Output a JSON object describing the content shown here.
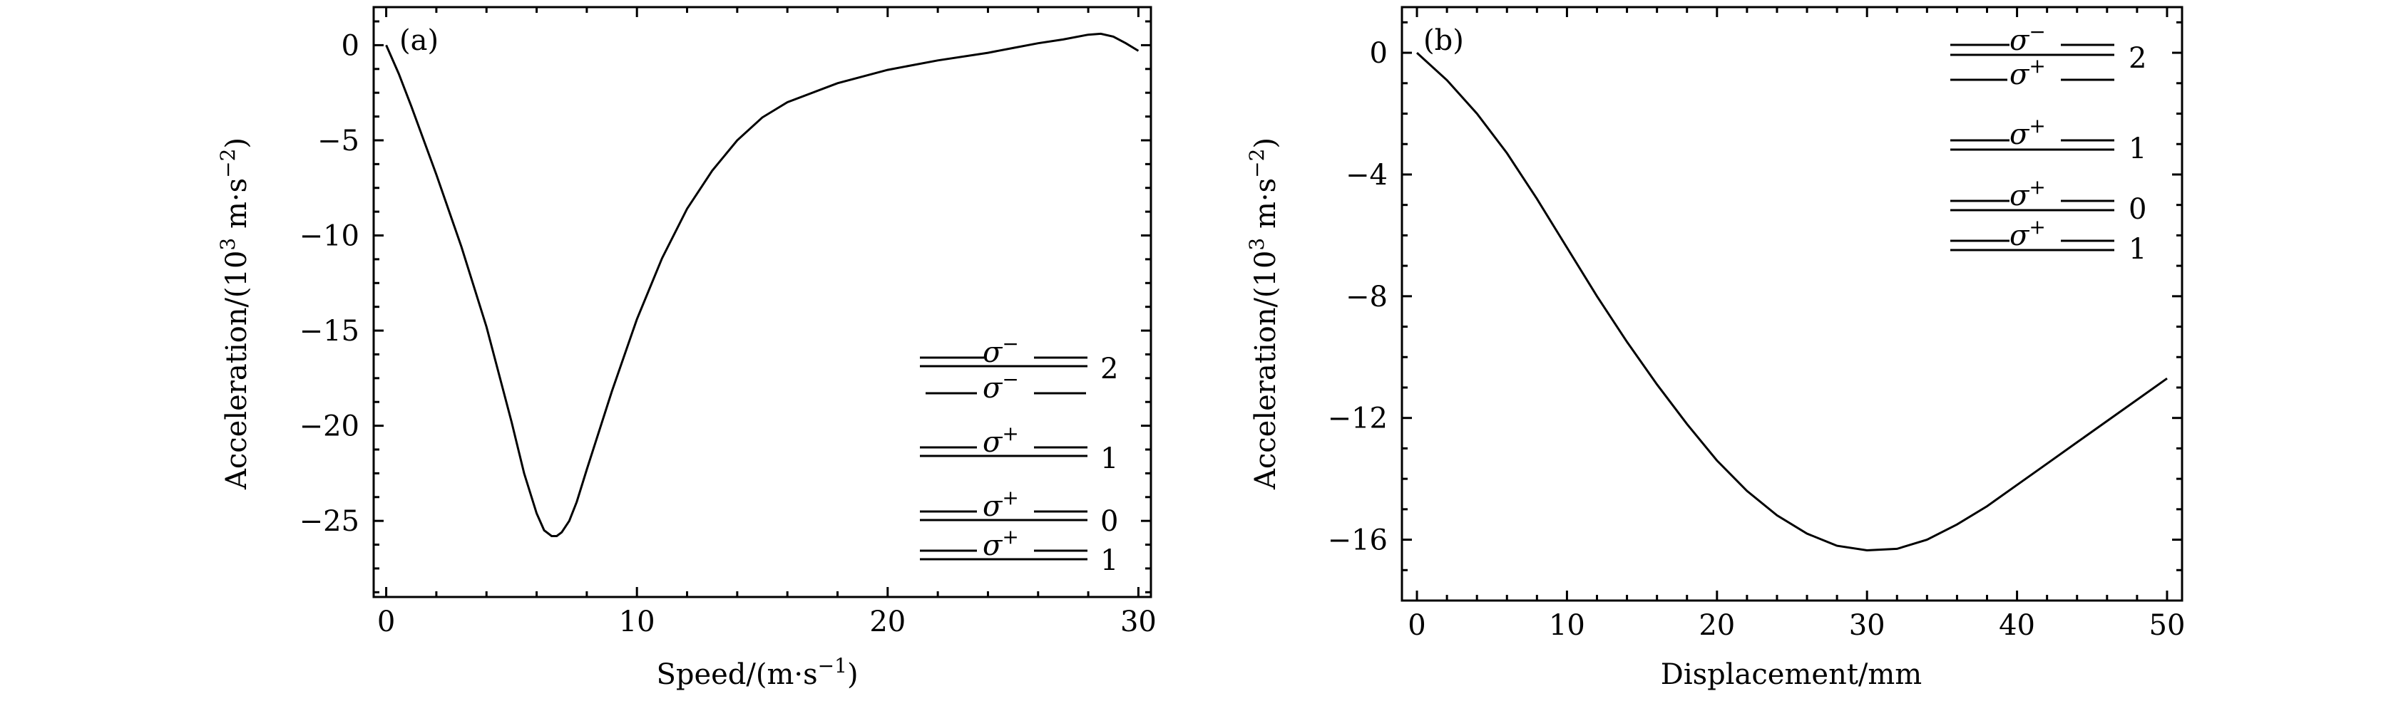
{
  "chart_data": [
    {
      "type": "line",
      "panel_label": "(a)",
      "xlabel": "Speed/(m·s⁻¹)",
      "ylabel": "Acceleration/(10³ m·s⁻²)",
      "xlim": [
        -0.5,
        30.5
      ],
      "ylim": [
        -29,
        2
      ],
      "xticks": [
        0,
        10,
        20,
        30
      ],
      "xtick_labels": [
        "0",
        "10",
        "20",
        "30"
      ],
      "yticks": [
        0,
        -5,
        -10,
        -15,
        -20,
        -25
      ],
      "ytick_labels": [
        "0",
        "−5",
        "−10",
        "−15",
        "−20",
        "−25"
      ],
      "series": [
        {
          "x": [
            0,
            0.5,
            1,
            2,
            3,
            4,
            5,
            5.5,
            6,
            6.3,
            6.6,
            6.8,
            7.0,
            7.3,
            7.6,
            8,
            9,
            10,
            11,
            12,
            13,
            14,
            15,
            16,
            18,
            20,
            22,
            24,
            25,
            26,
            27,
            28,
            28.5,
            29,
            29.5,
            30
          ],
          "y": [
            0,
            -1.5,
            -3.2,
            -6.8,
            -10.6,
            -14.8,
            -19.8,
            -22.5,
            -24.6,
            -25.5,
            -25.8,
            -25.8,
            -25.6,
            -25,
            -24,
            -22.3,
            -18.2,
            -14.4,
            -11.2,
            -8.6,
            -6.6,
            -5,
            -3.8,
            -3,
            -2,
            -1.3,
            -0.8,
            -0.4,
            -0.15,
            0.1,
            0.3,
            0.55,
            0.6,
            0.45,
            0.1,
            -0.3
          ]
        }
      ],
      "legend": [
        {
          "symbols": [
            "σ⁻",
            "σ⁻"
          ],
          "level": "2"
        },
        {
          "symbols": [
            "σ⁺"
          ],
          "level": "1"
        },
        {
          "symbols": [
            "σ⁺"
          ],
          "level": "0"
        },
        {
          "symbols": [
            "σ⁺"
          ],
          "level": "1"
        }
      ],
      "legend_position": "bottom-right",
      "grid": false
    },
    {
      "type": "line",
      "panel_label": "(b)",
      "xlabel": "Displacement/mm",
      "ylabel": "Acceleration/(10³ m·s⁻²)",
      "xlim": [
        -1,
        51
      ],
      "ylim": [
        -18,
        1.5
      ],
      "xticks": [
        0,
        10,
        20,
        30,
        40,
        50
      ],
      "xtick_labels": [
        "0",
        "10",
        "20",
        "30",
        "40",
        "50"
      ],
      "yticks": [
        0,
        -4,
        -8,
        -12,
        -16
      ],
      "ytick_labels": [
        "0",
        "−4",
        "−8",
        "−12",
        "−16"
      ],
      "series": [
        {
          "x": [
            0,
            2,
            4,
            6,
            8,
            10,
            12,
            14,
            16,
            18,
            20,
            22,
            24,
            26,
            28,
            30,
            32,
            34,
            36,
            38,
            40,
            42,
            44,
            46,
            48,
            50
          ],
          "y": [
            0,
            -0.9,
            -2.0,
            -3.3,
            -4.8,
            -6.4,
            -8.0,
            -9.5,
            -10.9,
            -12.2,
            -13.4,
            -14.4,
            -15.2,
            -15.8,
            -16.2,
            -16.35,
            -16.3,
            -16.0,
            -15.5,
            -14.9,
            -14.2,
            -13.5,
            -12.8,
            -12.1,
            -11.4,
            -10.7
          ]
        }
      ],
      "legend": [
        {
          "symbols": [
            "σ⁻",
            "σ⁺"
          ],
          "level": "2"
        },
        {
          "symbols": [
            "σ⁺"
          ],
          "level": "1"
        },
        {
          "symbols": [
            "σ⁺"
          ],
          "level": "0"
        },
        {
          "symbols": [
            "σ⁺"
          ],
          "level": "1"
        }
      ],
      "legend_position": "top-right",
      "grid": false
    }
  ]
}
